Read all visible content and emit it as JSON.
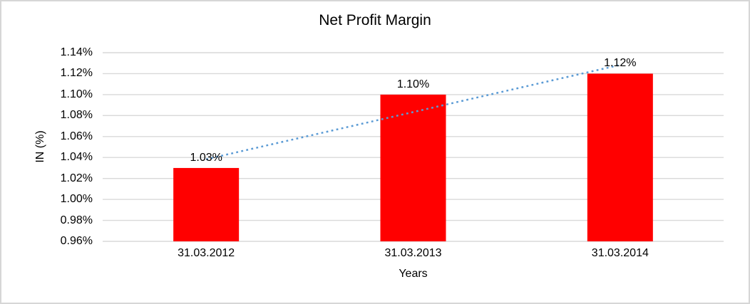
{
  "chart_data": {
    "type": "bar",
    "title": "Net Profit Margin",
    "xlabel": "Years",
    "ylabel": "IN (%)",
    "categories": [
      "31.03.2012",
      "31.03.2013",
      "31.03.2014"
    ],
    "values": [
      1.03,
      1.1,
      1.12
    ],
    "data_labels": [
      "1.03%",
      "1.10%",
      "1.12%"
    ],
    "ylim": [
      0.96,
      1.14
    ],
    "ytick_step": 0.02,
    "ytick_labels": [
      "0.96%",
      "0.98%",
      "1.00%",
      "1.02%",
      "1.04%",
      "1.06%",
      "1.08%",
      "1.10%",
      "1.12%",
      "1.14%"
    ],
    "grid": "horizontal-only",
    "legend": "none",
    "colors": {
      "bar": "#ff0000",
      "gridline": "#d9d9d9",
      "text": "#000000",
      "trendline": "#5b9bd5",
      "frame_border": "#d6d6d6"
    },
    "trendline": {
      "type": "linear",
      "line_style": "dotted",
      "color": "#5b9bd5",
      "spans": "first bar center to last bar center"
    }
  }
}
